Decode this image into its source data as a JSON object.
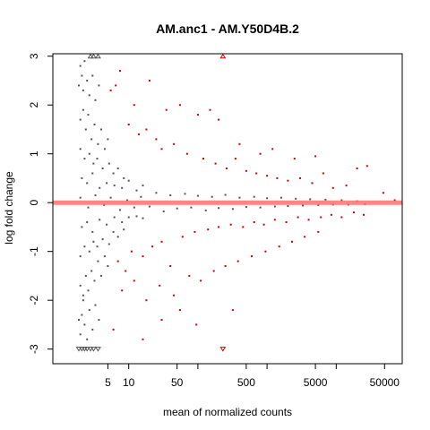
{
  "chart_data": {
    "type": "scatter",
    "title": "AM.anc1 - AM.Y50D4B.2",
    "xlabel": "mean of normalized counts",
    "ylabel": "log fold change",
    "x_scale": "log10",
    "xlim": [
      0.8,
      90000
    ],
    "ylim": [
      -3.2,
      3.2
    ],
    "x_ticks": [
      5,
      10,
      50,
      100,
      500,
      1000,
      5000,
      10000,
      50000
    ],
    "x_tick_labels": [
      "5",
      "10",
      "50",
      "",
      "500",
      "",
      "5000",
      "",
      "50000"
    ],
    "y_ticks": [
      -3,
      -2,
      -1,
      0,
      1,
      2,
      3
    ],
    "y_tick_labels": [
      "-3",
      "-2",
      "-1",
      "0",
      "1",
      "2",
      "3"
    ],
    "reference_line": {
      "y": 0,
      "color": "#ff6e6e"
    },
    "colors": {
      "not_significant": "#555555",
      "significant": "#cc0000"
    },
    "grid": false,
    "legend": "none",
    "clipped_markers": [
      {
        "x": 2.8,
        "y": 3,
        "direction": "up",
        "group": "not_significant"
      },
      {
        "x": 3.1,
        "y": 3,
        "direction": "up",
        "group": "not_significant"
      },
      {
        "x": 3.6,
        "y": 3,
        "direction": "up",
        "group": "not_significant"
      },
      {
        "x": 230,
        "y": 3,
        "direction": "up",
        "group": "significant"
      },
      {
        "x": 1.9,
        "y": -3,
        "direction": "down",
        "group": "not_significant"
      },
      {
        "x": 2.1,
        "y": -3,
        "direction": "down",
        "group": "not_significant"
      },
      {
        "x": 2.3,
        "y": -3,
        "direction": "down",
        "group": "not_significant"
      },
      {
        "x": 2.5,
        "y": -3,
        "direction": "down",
        "group": "not_significant"
      },
      {
        "x": 2.8,
        "y": -3,
        "direction": "down",
        "group": "not_significant"
      },
      {
        "x": 3.1,
        "y": -3,
        "direction": "down",
        "group": "not_significant"
      },
      {
        "x": 3.6,
        "y": -3,
        "direction": "down",
        "group": "not_significant"
      },
      {
        "x": 230,
        "y": -3,
        "direction": "down",
        "group": "significant"
      }
    ],
    "series": [
      {
        "group": "not_significant",
        "points": [
          [
            1.9,
            2.4
          ],
          [
            2.0,
            2.8
          ],
          [
            2.1,
            2.6
          ],
          [
            2.2,
            2.3
          ],
          [
            2.3,
            2.9
          ],
          [
            2.5,
            2.5
          ],
          [
            2.7,
            2.2
          ],
          [
            3.0,
            2.6
          ],
          [
            3.3,
            2.1
          ],
          [
            3.7,
            2.4
          ],
          [
            2.0,
            1.7
          ],
          [
            2.2,
            1.9
          ],
          [
            2.4,
            1.5
          ],
          [
            2.6,
            1.8
          ],
          [
            2.9,
            1.3
          ],
          [
            3.2,
            1.6
          ],
          [
            3.6,
            1.2
          ],
          [
            4.0,
            1.5
          ],
          [
            4.5,
            1.1
          ],
          [
            5.0,
            1.3
          ],
          [
            2.0,
            1.1
          ],
          [
            2.3,
            0.9
          ],
          [
            2.7,
            1.0
          ],
          [
            3.1,
            0.8
          ],
          [
            3.5,
            0.9
          ],
          [
            4.2,
            0.7
          ],
          [
            5.2,
            0.8
          ],
          [
            6.0,
            0.6
          ],
          [
            7.0,
            0.7
          ],
          [
            8.5,
            0.5
          ],
          [
            2.1,
            0.5
          ],
          [
            2.5,
            0.4
          ],
          [
            3.0,
            0.6
          ],
          [
            3.8,
            0.3
          ],
          [
            4.8,
            0.4
          ],
          [
            6.2,
            0.35
          ],
          [
            8.0,
            0.3
          ],
          [
            10,
            0.45
          ],
          [
            13,
            0.25
          ],
          [
            16,
            0.35
          ],
          [
            2.0,
            0.1
          ],
          [
            2.6,
            -0.1
          ],
          [
            3.3,
            0.15
          ],
          [
            4.4,
            -0.05
          ],
          [
            5.5,
            0.1
          ],
          [
            7.5,
            -0.15
          ],
          [
            9.5,
            0.05
          ],
          [
            12,
            -0.1
          ],
          [
            15,
            0.12
          ],
          [
            20,
            -0.08
          ],
          [
            25,
            0.2
          ],
          [
            32,
            -0.18
          ],
          [
            40,
            0.15
          ],
          [
            50,
            -0.12
          ],
          [
            65,
            0.18
          ],
          [
            80,
            -0.1
          ],
          [
            100,
            0.14
          ],
          [
            130,
            -0.16
          ],
          [
            160,
            0.12
          ],
          [
            200,
            -0.11
          ],
          [
            250,
            0.16
          ],
          [
            320,
            -0.13
          ],
          [
            400,
            0.1
          ],
          [
            500,
            -0.09
          ],
          [
            650,
            0.12
          ],
          [
            800,
            -0.1
          ],
          [
            1000,
            0.09
          ],
          [
            1300,
            -0.08
          ],
          [
            1600,
            0.1
          ],
          [
            2000,
            -0.07
          ],
          [
            2600,
            0.08
          ],
          [
            3300,
            -0.06
          ],
          [
            4200,
            0.07
          ],
          [
            5500,
            -0.05
          ],
          [
            7000,
            0.06
          ],
          [
            9000,
            -0.04
          ],
          [
            12000,
            0.05
          ],
          [
            15000,
            -0.04
          ],
          [
            20000,
            0.03
          ],
          [
            26000,
            -0.03
          ],
          [
            2.1,
            -0.5
          ],
          [
            2.5,
            -0.4
          ],
          [
            3.0,
            -0.6
          ],
          [
            3.8,
            -0.35
          ],
          [
            4.8,
            -0.45
          ],
          [
            6.2,
            -0.3
          ],
          [
            8.0,
            -0.4
          ],
          [
            10,
            -0.3
          ],
          [
            13,
            -0.28
          ],
          [
            16,
            -0.32
          ],
          [
            2.0,
            -1.1
          ],
          [
            2.3,
            -0.9
          ],
          [
            2.7,
            -1.0
          ],
          [
            3.1,
            -0.8
          ],
          [
            3.5,
            -0.9
          ],
          [
            4.2,
            -0.75
          ],
          [
            5.2,
            -0.85
          ],
          [
            6.0,
            -0.6
          ],
          [
            7.0,
            -0.7
          ],
          [
            8.5,
            -0.55
          ],
          [
            2.0,
            -1.7
          ],
          [
            2.2,
            -1.9
          ],
          [
            2.4,
            -1.5
          ],
          [
            2.6,
            -1.8
          ],
          [
            2.9,
            -1.4
          ],
          [
            3.2,
            -1.6
          ],
          [
            3.6,
            -1.2
          ],
          [
            4.0,
            -1.5
          ],
          [
            4.5,
            -1.1
          ],
          [
            5.0,
            -1.3
          ],
          [
            1.9,
            -2.4
          ],
          [
            2.0,
            -2.7
          ],
          [
            2.1,
            -2.3
          ],
          [
            2.3,
            -2.5
          ],
          [
            2.5,
            -2.8
          ],
          [
            2.7,
            -2.2
          ],
          [
            3.0,
            -2.6
          ],
          [
            3.3,
            -2.1
          ],
          [
            3.7,
            -2.4
          ],
          [
            2.2,
            -2.0
          ]
        ]
      },
      {
        "group": "significant",
        "points": [
          [
            5.5,
            2.3
          ],
          [
            6.5,
            2.4
          ],
          [
            7.5,
            2.7
          ],
          [
            12,
            2.0
          ],
          [
            20,
            2.5
          ],
          [
            35,
            1.9
          ],
          [
            55,
            2.0
          ],
          [
            100,
            1.8
          ],
          [
            150,
            1.9
          ],
          [
            200,
            1.7
          ],
          [
            10,
            1.6
          ],
          [
            14,
            1.4
          ],
          [
            18,
            1.5
          ],
          [
            25,
            1.3
          ],
          [
            30,
            1.1
          ],
          [
            45,
            1.2
          ],
          [
            70,
            1.0
          ],
          [
            120,
            0.9
          ],
          [
            180,
            0.8
          ],
          [
            260,
            0.7
          ],
          [
            350,
            0.9
          ],
          [
            500,
            0.65
          ],
          [
            700,
            0.6
          ],
          [
            1000,
            0.55
          ],
          [
            1400,
            0.5
          ],
          [
            2000,
            0.45
          ],
          [
            3000,
            0.5
          ],
          [
            4500,
            0.4
          ],
          [
            6500,
            0.6
          ],
          [
            9000,
            0.3
          ],
          [
            14000,
            0.35
          ],
          [
            20000,
            0.7
          ],
          [
            28000,
            0.75
          ],
          [
            48000,
            0.2
          ],
          [
            70000,
            0.05
          ],
          [
            400,
            1.2
          ],
          [
            800,
            1.0
          ],
          [
            1200,
            1.1
          ],
          [
            2500,
            0.9
          ],
          [
            5000,
            0.95
          ],
          [
            7,
            -1.2
          ],
          [
            9,
            -1.4
          ],
          [
            11,
            -1.0
          ],
          [
            16,
            -1.1
          ],
          [
            22,
            -0.9
          ],
          [
            30,
            -0.8
          ],
          [
            40,
            -1.3
          ],
          [
            60,
            -0.7
          ],
          [
            90,
            -0.6
          ],
          [
            140,
            -0.55
          ],
          [
            200,
            -0.5
          ],
          [
            300,
            -0.45
          ],
          [
            450,
            -0.5
          ],
          [
            650,
            -0.4
          ],
          [
            900,
            -0.45
          ],
          [
            1300,
            -0.35
          ],
          [
            1900,
            -0.4
          ],
          [
            2800,
            -0.3
          ],
          [
            4000,
            -0.35
          ],
          [
            6000,
            -0.3
          ],
          [
            8500,
            -0.25
          ],
          [
            12000,
            -0.3
          ],
          [
            18000,
            -0.2
          ],
          [
            25000,
            -0.25
          ],
          [
            8,
            -1.8
          ],
          [
            12,
            -1.6
          ],
          [
            18,
            -2.0
          ],
          [
            28,
            -1.7
          ],
          [
            45,
            -1.9
          ],
          [
            75,
            -1.5
          ],
          [
            110,
            -1.6
          ],
          [
            170,
            -1.4
          ],
          [
            250,
            -1.3
          ],
          [
            380,
            -1.2
          ],
          [
            600,
            -1.1
          ],
          [
            950,
            -1.0
          ],
          [
            1500,
            -0.9
          ],
          [
            2300,
            -0.8
          ],
          [
            3500,
            -0.7
          ],
          [
            5500,
            -0.6
          ],
          [
            6,
            -2.6
          ],
          [
            16,
            -2.8
          ],
          [
            30,
            -2.4
          ],
          [
            55,
            -2.2
          ],
          [
            95,
            -2.5
          ],
          [
            320,
            -2.2
          ]
        ]
      }
    ]
  }
}
